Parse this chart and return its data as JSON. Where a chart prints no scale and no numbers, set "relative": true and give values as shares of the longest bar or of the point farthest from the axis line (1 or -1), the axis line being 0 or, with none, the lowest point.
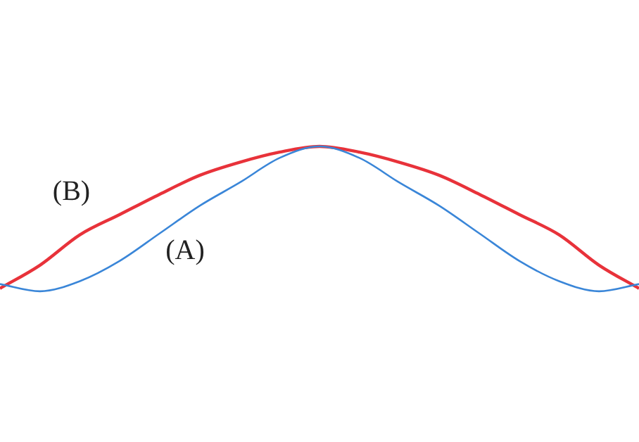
{
  "chart_data": {
    "type": "line",
    "relative": true,
    "categories": [
      null,
      null,
      null,
      null,
      null,
      null,
      null,
      null,
      null,
      null,
      null,
      null,
      null,
      null,
      null,
      null,
      null
    ],
    "marker": "none",
    "legend": false,
    "grid": false,
    "series": [
      {
        "name": "(A)",
        "color": "#3a86d8",
        "values": [
          0.05,
          0,
          0.07,
          0.21,
          0.4,
          0.59,
          0.75,
          0.92,
          1,
          0.92,
          0.75,
          0.59,
          0.4,
          0.21,
          0.07,
          0,
          0.05
        ]
      },
      {
        "name": "(B)",
        "color": "#e8323a",
        "values": [
          0.02,
          0.18,
          0.39,
          0.53,
          0.67,
          0.8,
          0.89,
          0.96,
          1,
          0.96,
          0.89,
          0.8,
          0.67,
          0.53,
          0.39,
          0.18,
          0.02
        ]
      }
    ]
  }
}
